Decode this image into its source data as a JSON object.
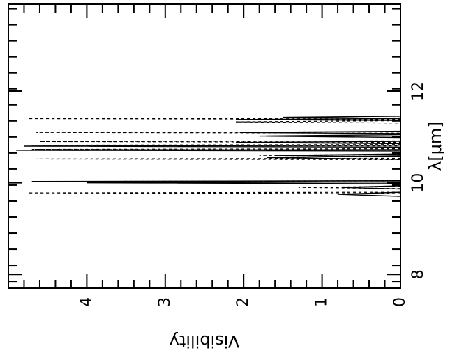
{
  "chart_data": {
    "type": "line",
    "orientation": "rotated-90-clockwise",
    "xlabel": "λ[μm]",
    "ylabel": "Visibility",
    "xlim": [
      7.7,
      13.9
    ],
    "ylim": [
      0,
      5
    ],
    "x_major_ticks": [
      8,
      10,
      12
    ],
    "x_minor_ticks": [
      7.85,
      8.2,
      8.55,
      8.9,
      9.25,
      9.6,
      9.95,
      10.3,
      10.65,
      11.0,
      11.35,
      11.7,
      12.05,
      12.4,
      12.75,
      13.1,
      13.45,
      13.8
    ],
    "y_ticks": [
      0,
      1,
      2,
      3,
      4
    ],
    "y_minor_step": 0.2,
    "grid": false,
    "series": [
      {
        "style": "solid",
        "spikes": [
          {
            "x": 9.75,
            "v": 0.8,
            "w": 0.09
          },
          {
            "x": 9.9,
            "v": 0.75,
            "w": 0.07
          },
          {
            "x": 10.0,
            "v": 4.0,
            "w": 0.04
          },
          {
            "x": 10.03,
            "v": 4.7,
            "w": 0.03
          },
          {
            "x": 10.55,
            "v": 1.7,
            "w": 0.08
          },
          {
            "x": 10.6,
            "v": 1.6,
            "w": 0.06
          },
          {
            "x": 10.71,
            "v": 4.9,
            "w": 0.02
          },
          {
            "x": 10.8,
            "v": 4.8,
            "w": 0.04
          },
          {
            "x": 10.88,
            "v": 2.1,
            "w": 0.05
          },
          {
            "x": 11.02,
            "v": 1.8,
            "w": 0.06
          },
          {
            "x": 11.1,
            "v": 2.05,
            "w": 0.05
          },
          {
            "x": 11.38,
            "v": 2.1,
            "w": 0.04
          },
          {
            "x": 11.43,
            "v": 1.5,
            "w": 0.05
          }
        ]
      },
      {
        "style": "dashed",
        "spikes": [
          {
            "x": 9.78,
            "v": 4.75,
            "w": 0.03
          },
          {
            "x": 9.9,
            "v": 1.3,
            "w": 0.05
          },
          {
            "x": 10.03,
            "v": 4.1,
            "w": 0.03
          },
          {
            "x": 10.52,
            "v": 4.65,
            "w": 0.03
          },
          {
            "x": 10.6,
            "v": 1.8,
            "w": 0.05
          },
          {
            "x": 10.73,
            "v": 4.7,
            "w": 0.03
          },
          {
            "x": 10.82,
            "v": 4.7,
            "w": 0.03
          },
          {
            "x": 10.9,
            "v": 4.6,
            "w": 0.03
          },
          {
            "x": 11.1,
            "v": 4.65,
            "w": 0.03
          },
          {
            "x": 11.33,
            "v": 2.1,
            "w": 0.05
          },
          {
            "x": 11.4,
            "v": 4.75,
            "w": 0.03
          }
        ]
      }
    ]
  }
}
